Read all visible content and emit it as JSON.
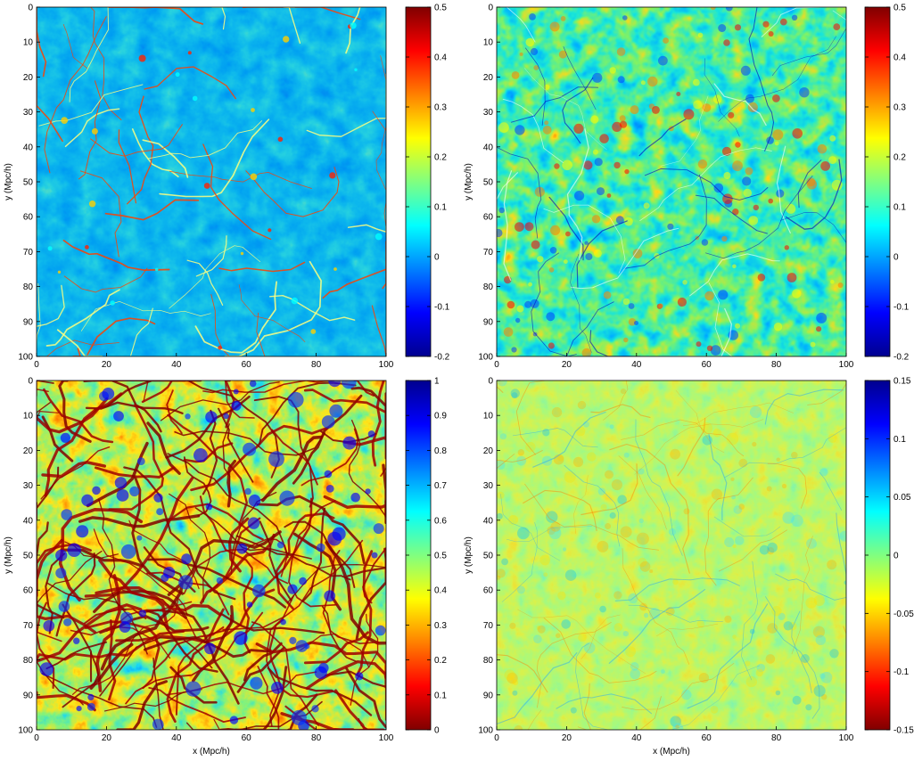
{
  "chart_data": [
    {
      "type": "heatmap",
      "xlabel": "",
      "ylabel": "y (Mpc/h)",
      "xlim": [
        0,
        100
      ],
      "ylim": [
        100,
        0
      ],
      "x_ticks": [
        "0",
        "20",
        "40",
        "60",
        "80",
        "100"
      ],
      "y_ticks": [
        "0",
        "10",
        "20",
        "30",
        "40",
        "50",
        "60",
        "70",
        "80",
        "90",
        "100"
      ],
      "colorbar": {
        "min": -0.2,
        "max": 0.5,
        "colormap": "jet",
        "ticks": [
          "0.5",
          "0.4",
          "0.3",
          "0.2",
          "0.1",
          "0",
          "-0.1",
          "-0.2"
        ]
      },
      "field_style": "filaments"
    },
    {
      "type": "heatmap",
      "xlabel": "",
      "ylabel": "y (Mpc/h)",
      "xlim": [
        0,
        100
      ],
      "ylim": [
        100,
        0
      ],
      "x_ticks": [
        "0",
        "20",
        "40",
        "60",
        "80",
        "100"
      ],
      "y_ticks": [
        "0",
        "10",
        "20",
        "30",
        "40",
        "50",
        "60",
        "70",
        "80",
        "90",
        "100"
      ],
      "colorbar": {
        "min": -0.2,
        "max": 0.5,
        "colormap": "jet",
        "ticks": [
          "0.5",
          "0.4",
          "0.3",
          "0.2",
          "0.1",
          "0",
          "-0.1",
          "-0.2"
        ]
      },
      "field_style": "blobs"
    },
    {
      "type": "heatmap",
      "xlabel": "x (Mpc/h)",
      "ylabel": "y (Mpc/h)",
      "xlim": [
        0,
        100
      ],
      "ylim": [
        100,
        0
      ],
      "x_ticks": [
        "0",
        "20",
        "40",
        "60",
        "80",
        "100"
      ],
      "y_ticks": [
        "0",
        "10",
        "20",
        "30",
        "40",
        "50",
        "60",
        "70",
        "80",
        "90",
        "100"
      ],
      "colorbar": {
        "min": 0,
        "max": 1,
        "colormap": "jet-reversed",
        "ticks": [
          "1",
          "0.9",
          "0.8",
          "0.7",
          "0.6",
          "0.5",
          "0.4",
          "0.3",
          "0.2",
          "0.1",
          "0"
        ]
      },
      "field_style": "web"
    },
    {
      "type": "heatmap",
      "xlabel": "x (Mpc/h)",
      "ylabel": "y (Mpc/h)",
      "xlim": [
        0,
        100
      ],
      "ylim": [
        100,
        0
      ],
      "x_ticks": [
        "0",
        "20",
        "40",
        "60",
        "80",
        "100"
      ],
      "y_ticks": [
        "0",
        "10",
        "20",
        "30",
        "40",
        "50",
        "60",
        "70",
        "80",
        "90",
        "100"
      ],
      "colorbar": {
        "min": -0.15,
        "max": 0.15,
        "colormap": "jet-reversed",
        "ticks": [
          "0.15",
          "0.1",
          "0.05",
          "0",
          "-0.05",
          "-0.1",
          "-0.15"
        ]
      },
      "field_style": "residual"
    }
  ]
}
